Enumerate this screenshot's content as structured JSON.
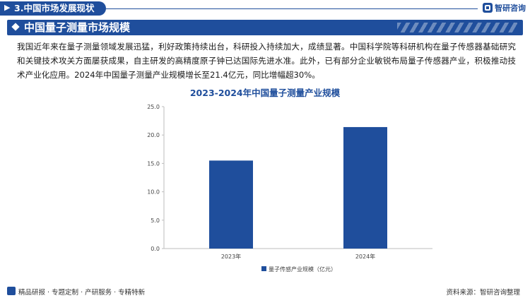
{
  "header": {
    "section_label": "3.中国市场发展现状",
    "brand": "智研咨询"
  },
  "title": "中国量子测量市场规模",
  "paragraph": "我国近年来在量子测量领域发展迅猛，利好政策持续出台，科研投入持续加大，成绩显著。中国科学院等科研机构在量子传感器基础研究和关键技术攻关方面屡获成果，自主研发的高精度原子钟已达国际先进水准。此外，已有部分企业敏锐布局量子传感器产业，积极推动技术产业化应用。2024年中国量子测量产业规模增长至21.4亿元，同比增幅超30%。",
  "chart_data": {
    "type": "bar",
    "title": "2023-2024年中国量子测量产业规模",
    "categories": [
      "2023年",
      "2024年"
    ],
    "series": [
      {
        "name": "量子传感产业规模（亿元）",
        "values": [
          15.5,
          21.4
        ],
        "color": "#1f4e9c"
      }
    ],
    "y_ticks": [
      "0.0",
      "5.0",
      "10.0",
      "15.0",
      "20.0",
      "25.0"
    ],
    "ylim": [
      0,
      25
    ],
    "grid": false,
    "legend_position": "bottom"
  },
  "footer": {
    "left": "精品研报 · 专题定制 · 产研服务 · 专精特新",
    "right": "资料来源：智研咨询整理"
  },
  "colors": {
    "primary": "#1f4e9c"
  }
}
